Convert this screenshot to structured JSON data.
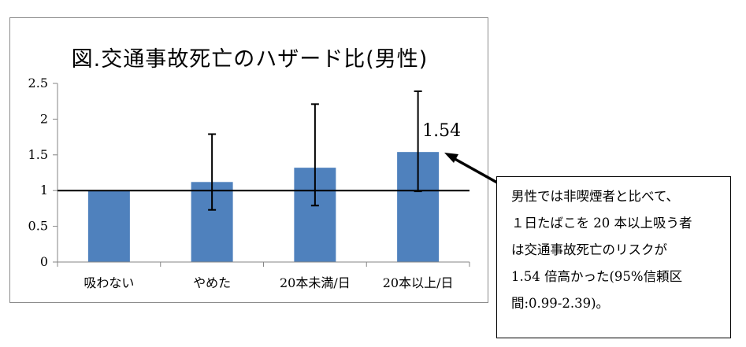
{
  "chart_data": {
    "type": "bar",
    "title": "図.交通事故死亡のハザード比(男性)",
    "categories": [
      "吸わない",
      "やめた",
      "20本未満/日",
      "20本以上/日"
    ],
    "values": [
      1.0,
      1.12,
      1.32,
      1.54
    ],
    "error_low": [
      null,
      0.73,
      0.79,
      0.99
    ],
    "error_high": [
      null,
      1.79,
      2.21,
      2.39
    ],
    "ylim": [
      0,
      2.5
    ],
    "yticks": [
      0,
      0.5,
      1,
      1.5,
      2,
      2.5
    ],
    "ytick_labels": [
      "0",
      "0.5",
      "1",
      "1.5",
      "2",
      "2.5"
    ],
    "reference_line": 1,
    "grid": false,
    "bar_color": "#4f81bd",
    "annotation": {
      "label": "1.54",
      "category_index": 3
    }
  },
  "callout": {
    "lines": [
      "男性では非喫煙者と比べて、",
      "１日たばこを 20 本以上吸う者",
      "は交通事故死亡のリスクが",
      "1.54 倍高かった(95%信頼区",
      "間:0.99-2.39)。"
    ]
  }
}
